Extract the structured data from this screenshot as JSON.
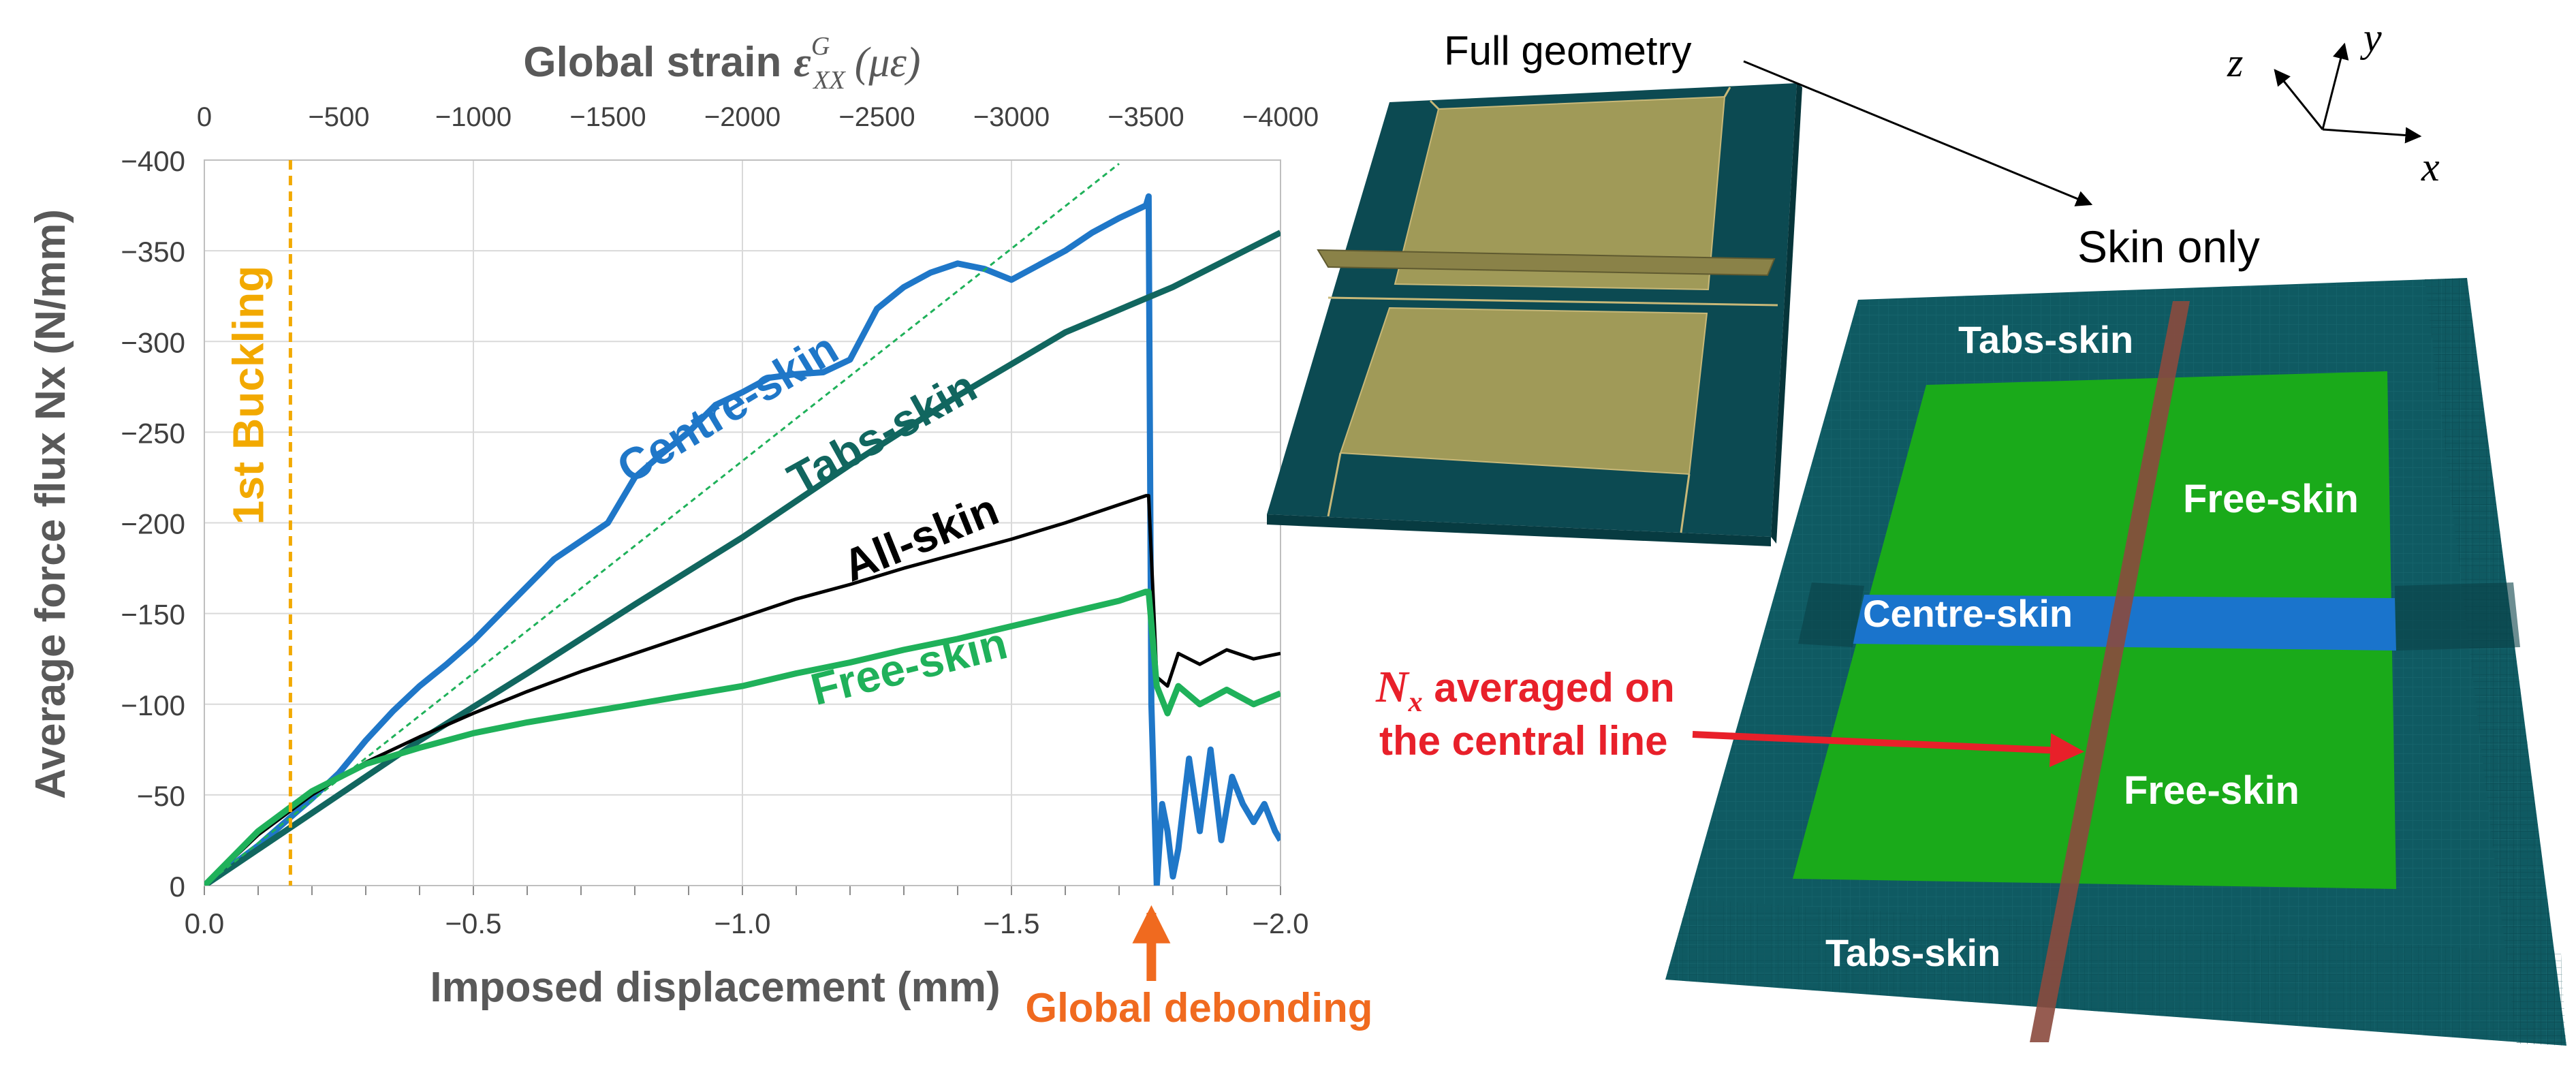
{
  "chart_data": {
    "type": "line",
    "title": "",
    "xlabel": "Imposed displacement (mm)",
    "ylabel": "Average force flux Nx (N/mm)",
    "top_axis_label": "Global strain",
    "top_axis_symbol": "ε",
    "top_axis_super": "G",
    "top_axis_sub": "XX",
    "top_axis_unit": "(με)",
    "xlim": [
      0,
      -2.0
    ],
    "ylim": [
      0,
      -400
    ],
    "x_ticks": [
      0.0,
      -0.5,
      -1.0,
      -1.5,
      -2.0
    ],
    "x_tick_labels": [
      "0.0",
      "−0.5",
      "−1.0",
      "−1.5",
      "−2.0"
    ],
    "y_ticks": [
      0,
      -50,
      -100,
      -150,
      -200,
      -250,
      -300,
      -350,
      -400
    ],
    "y_tick_labels": [
      "0",
      "−50",
      "−100",
      "−150",
      "−200",
      "−250",
      "−300",
      "−350",
      "−400"
    ],
    "top_ticks": [
      0,
      -500,
      -1000,
      -1500,
      -2000,
      -2500,
      -3000,
      -3500,
      -4000
    ],
    "top_tick_labels": [
      "0",
      "−500",
      "−1000",
      "−1500",
      "−2000",
      "−2500",
      "−3000",
      "−3500",
      "−4000"
    ],
    "grid": true,
    "buckling_x": -0.16,
    "buckling_label": "1st Buckling",
    "debonding_x": -1.76,
    "debonding_label": "Global debonding",
    "series": [
      {
        "name": "Centre-skin",
        "label": "Centre-skin",
        "color": "#1f77c8",
        "x": [
          0,
          -0.1,
          -0.15,
          -0.2,
          -0.25,
          -0.3,
          -0.35,
          -0.4,
          -0.45,
          -0.5,
          -0.55,
          -0.6,
          -0.65,
          -0.7,
          -0.75,
          -0.8,
          -0.85,
          -0.9,
          -0.95,
          -1.0,
          -1.05,
          -1.1,
          -1.15,
          -1.2,
          -1.25,
          -1.3,
          -1.35,
          -1.4,
          -1.45,
          -1.5,
          -1.55,
          -1.6,
          -1.65,
          -1.7,
          -1.75,
          -1.755,
          -1.76,
          -1.77,
          -1.78,
          -1.79,
          -1.8,
          -1.81,
          -1.83,
          -1.85,
          -1.87,
          -1.89,
          -1.91,
          -1.93,
          -1.95,
          -1.97,
          -1.99,
          -2.0
        ],
        "y": [
          0,
          -22,
          -35,
          -48,
          -62,
          -80,
          -96,
          -110,
          -122,
          -135,
          -150,
          -165,
          -180,
          -190,
          -200,
          -225,
          -238,
          -250,
          -265,
          -272,
          -280,
          -282,
          -283,
          -290,
          -318,
          -330,
          -338,
          -343,
          -340,
          -334,
          -342,
          -350,
          -360,
          -368,
          -375,
          -380,
          -100,
          0,
          -45,
          -30,
          -5,
          -20,
          -70,
          -30,
          -75,
          -25,
          -60,
          -45,
          -35,
          -45,
          -30,
          -25
        ]
      },
      {
        "name": "Tabs-skin",
        "label": "Tabs-skin",
        "color": "#11665f",
        "x": [
          0,
          -0.2,
          -0.4,
          -0.6,
          -0.8,
          -1.0,
          -1.2,
          -1.4,
          -1.6,
          -1.8,
          -2.0
        ],
        "y": [
          0,
          -40,
          -80,
          -117,
          -155,
          -192,
          -232,
          -270,
          -305,
          -330,
          -360
        ]
      },
      {
        "name": "All-skin",
        "label": "All-skin",
        "color": "#000000",
        "x": [
          0,
          -0.1,
          -0.2,
          -0.3,
          -0.4,
          -0.5,
          -0.6,
          -0.7,
          -0.8,
          -0.9,
          -1.0,
          -1.1,
          -1.2,
          -1.3,
          -1.4,
          -1.5,
          -1.6,
          -1.7,
          -1.75,
          -1.755,
          -1.77,
          -1.79,
          -1.81,
          -1.85,
          -1.9,
          -1.95,
          -2.0
        ],
        "y": [
          0,
          -28,
          -50,
          -68,
          -82,
          -95,
          -107,
          -118,
          -128,
          -138,
          -148,
          -158,
          -166,
          -175,
          -183,
          -191,
          -200,
          -210,
          -215,
          -215,
          -115,
          -110,
          -128,
          -122,
          -130,
          -125,
          -128
        ]
      },
      {
        "name": "Free-skin",
        "label": "Free-skin",
        "color": "#1fb15a",
        "x": [
          0,
          -0.1,
          -0.2,
          -0.3,
          -0.4,
          -0.5,
          -0.6,
          -0.7,
          -0.8,
          -0.9,
          -1.0,
          -1.1,
          -1.2,
          -1.3,
          -1.4,
          -1.5,
          -1.6,
          -1.7,
          -1.75,
          -1.755,
          -1.77,
          -1.79,
          -1.81,
          -1.85,
          -1.9,
          -1.95,
          -2.0
        ],
        "y": [
          0,
          -30,
          -52,
          -67,
          -76,
          -84,
          -90,
          -95,
          -100,
          -105,
          -110,
          -117,
          -123,
          -130,
          -136,
          -143,
          -150,
          -157,
          -162,
          -162,
          -110,
          -95,
          -110,
          -100,
          -108,
          -100,
          -106
        ]
      },
      {
        "name": "Linear reference",
        "label": "",
        "color": "#1fb15a",
        "dashed": true,
        "x": [
          0,
          -1.7
        ],
        "y": [
          0,
          -398
        ]
      }
    ]
  },
  "labels": {
    "full_geometry": "Full geometry",
    "skin_only": "Skin only",
    "axis_x": "x",
    "axis_y": "y",
    "axis_z": "z"
  },
  "skin_panel": {
    "tabs_skin_top": "Tabs-skin",
    "tabs_skin_bottom": "Tabs-skin",
    "free_skin_top": "Free-skin",
    "free_skin_bottom": "Free-skin",
    "centre_skin": "Centre-skin",
    "nx_symbol": "N",
    "nx_sub": "x",
    "nx_line1_rest": " averaged on",
    "nx_line2": "the central line"
  },
  "colors": {
    "tabs": "#0f5a62",
    "free": "#1aaa1a",
    "centre": "#1a74cc",
    "stringer_line": "#8b4a3e",
    "plate_tan": "#a09a58",
    "buckling": "#f2a900",
    "debond": "#f06a1f",
    "annotation_red": "#e8202a",
    "axis_gray": "#595959"
  }
}
